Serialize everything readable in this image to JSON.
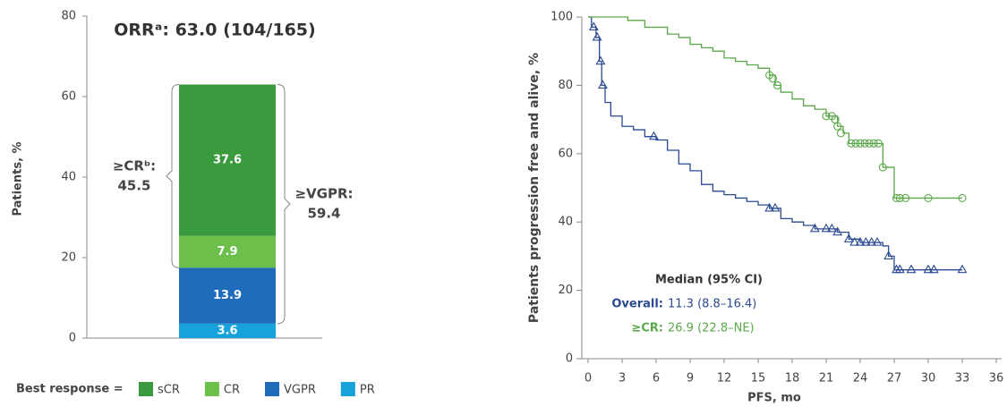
{
  "chart_data": [
    {
      "type": "bar",
      "stacked": true,
      "title": "ORRᵃ: 63.0 (104/165)",
      "y_label": "Patients, %",
      "categories": [
        null
      ],
      "ylim": [
        0,
        80
      ],
      "yticks": [
        0,
        20,
        40,
        60,
        80
      ],
      "series": [
        {
          "name": "PR",
          "color": "#17a2dc",
          "values": [
            3.6
          ]
        },
        {
          "name": "VGPR",
          "color": "#1f6cbb",
          "values": [
            13.9
          ]
        },
        {
          "name": "CR",
          "color": "#6cbf4a",
          "values": [
            7.9
          ]
        },
        {
          "name": "sCR",
          "color": "#3a9a3e",
          "values": [
            37.6
          ]
        }
      ],
      "legend_title": "Best response =",
      "annotations": [
        {
          "label": "≥CRᵇ:",
          "value": 45.5
        },
        {
          "label": "≥VGPR:",
          "value": 59.4
        }
      ]
    },
    {
      "type": "step",
      "x_label": "PFS, mo",
      "y_label": "Patients progression free and alive, %",
      "xlim": [
        0,
        36
      ],
      "xticks": [
        0,
        3,
        6,
        9,
        12,
        15,
        18,
        21,
        24,
        27,
        30,
        33,
        36
      ],
      "ylim": [
        0,
        100
      ],
      "yticks": [
        0,
        20,
        40,
        60,
        80,
        100
      ],
      "median_title": "Median (95% CI)",
      "series": [
        {
          "name": "Overall:",
          "median": "11.3 (8.8–16.4)",
          "color": "#2b4a92",
          "x": [
            0,
            0.3,
            0.7,
            1,
            1.2,
            1.5,
            2,
            3,
            4,
            5,
            6,
            7,
            8,
            9,
            10,
            11,
            12,
            13,
            14,
            15,
            16,
            17,
            18,
            19,
            20,
            22,
            23,
            24,
            26,
            26.5,
            27,
            33
          ],
          "values": [
            100,
            97,
            94,
            87,
            80,
            75,
            71,
            68,
            67,
            65,
            64,
            61,
            57,
            55,
            51,
            49,
            48,
            47,
            46,
            45,
            44,
            41,
            40,
            39,
            38,
            37,
            35,
            34,
            33,
            30,
            26,
            26
          ],
          "censor_x": [
            0.5,
            0.8,
            1.1,
            1.3,
            5.8,
            16,
            16.5,
            20,
            21,
            21.5,
            22,
            23,
            23.5,
            24,
            24.5,
            25,
            25.5,
            26.5,
            27.2,
            27.5,
            28.5,
            30,
            30.5,
            33
          ],
          "censor_y": [
            97,
            94,
            87,
            80,
            65,
            44,
            44,
            38,
            38,
            38,
            37,
            35,
            34,
            34,
            34,
            34,
            34,
            30,
            26,
            26,
            26,
            26,
            26,
            26
          ]
        },
        {
          "name": "≥CR:",
          "median": "26.9 (22.8–NE)",
          "color": "#5aa84a",
          "x": [
            0,
            3,
            3.5,
            5,
            7,
            8,
            9,
            10,
            11,
            12,
            13,
            14,
            15,
            16,
            16.5,
            17,
            18,
            19,
            20,
            21,
            22,
            22.5,
            23,
            26,
            27,
            33
          ],
          "values": [
            100,
            100,
            99,
            97,
            95,
            94,
            92,
            91,
            90,
            88,
            87,
            86,
            85,
            83,
            80,
            78,
            76,
            74,
            73,
            71,
            68,
            66,
            63,
            56,
            47,
            47
          ],
          "censor_x": [
            16,
            16.3,
            16.7,
            21,
            21.5,
            21.8,
            22,
            22.3,
            23.2,
            23.6,
            24,
            24.4,
            24.8,
            25.2,
            25.6,
            26,
            27.2,
            27.5,
            28,
            30,
            33
          ],
          "censor_y": [
            83,
            82,
            80,
            71,
            71,
            70,
            68,
            66,
            63,
            63,
            63,
            63,
            63,
            63,
            63,
            56,
            47,
            47,
            47,
            47,
            47
          ]
        }
      ]
    }
  ]
}
